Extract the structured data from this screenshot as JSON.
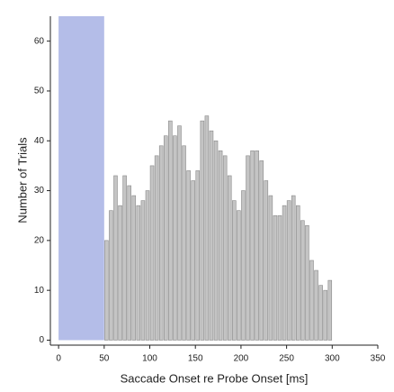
{
  "chart_data": {
    "type": "histogram",
    "xlabel": "Saccade Onset re Probe Onset [ms]",
    "ylabel": "Number of Trials",
    "bins": [
      50,
      55,
      60,
      65,
      70,
      75,
      80,
      85,
      90,
      95,
      100,
      105,
      110,
      115,
      120,
      125,
      130,
      135,
      140,
      145,
      150,
      155,
      160,
      165,
      170,
      175,
      180,
      185,
      190,
      195,
      200,
      205,
      210,
      215,
      220,
      225,
      230,
      235,
      240,
      245,
      250,
      255,
      260,
      265,
      270,
      275,
      280,
      285,
      290,
      295,
      300
    ],
    "values": [
      20,
      26,
      33,
      27,
      33,
      31,
      29,
      27,
      28,
      30,
      35,
      37,
      39,
      41,
      44,
      41,
      43,
      39,
      34,
      32,
      34,
      44,
      45,
      42,
      40,
      38,
      37,
      33,
      28,
      26,
      30,
      37,
      38,
      38,
      36,
      32,
      29,
      25,
      25,
      27,
      28,
      29,
      27,
      24,
      23,
      16,
      14,
      11,
      10,
      12
    ],
    "color": "#c4c4c4",
    "shaded_region": [
      0,
      50
    ],
    "shaded_color": "#b4bde8",
    "xlim": [
      -9,
      350
    ],
    "ylim": [
      -1,
      65
    ],
    "xticks": [
      0,
      50,
      100,
      150,
      200,
      250,
      300,
      350
    ],
    "yticks": [
      0,
      10,
      20,
      30,
      40,
      50,
      60
    ]
  }
}
